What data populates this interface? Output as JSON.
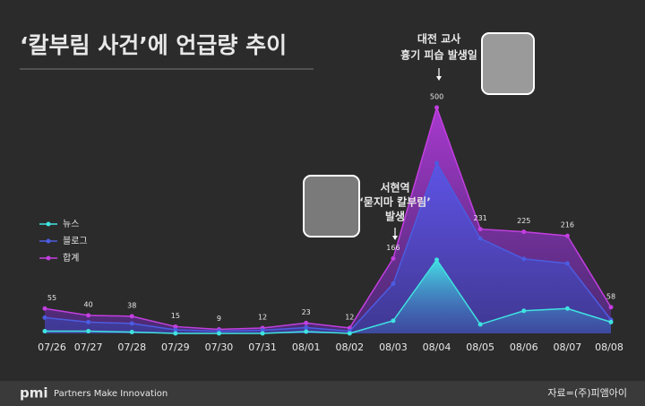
{
  "chart_data": {
    "type": "area",
    "title": "‘칼부림 사건’에 언급량 추이",
    "categories": [
      "07/26",
      "07/27",
      "07/28",
      "07/29",
      "07/30",
      "07/31",
      "08/01",
      "08/02",
      "08/03",
      "08/04",
      "08/05",
      "08/06",
      "08/07",
      "08/08"
    ],
    "series": [
      {
        "name": "뉴스",
        "color": "#3fe3e0",
        "values": [
          5,
          5,
          3,
          0,
          0,
          0,
          4,
          0,
          28,
          163,
          20,
          50,
          55,
          25
        ]
      },
      {
        "name": "블로그",
        "color": "#4c5ce0",
        "values": [
          35,
          25,
          22,
          8,
          5,
          7,
          13,
          5,
          110,
          377,
          210,
          165,
          155,
          30
        ]
      },
      {
        "name": "합계",
        "color": "#c23fe0",
        "values": [
          55,
          40,
          38,
          15,
          9,
          12,
          23,
          12,
          166,
          500,
          231,
          225,
          216,
          58
        ]
      }
    ],
    "labeled_series": 2,
    "ylim": [
      0,
      500
    ],
    "annotations": [
      [
        "대전 교사",
        "흉기 피습 발생일"
      ],
      [
        "서현역",
        "‘묻지마 칼부림’",
        "발생"
      ]
    ],
    "footer": {
      "logo": "pmi",
      "slogan": "Partners Make Innovation",
      "source": "자료=(주)피앰아이"
    }
  }
}
